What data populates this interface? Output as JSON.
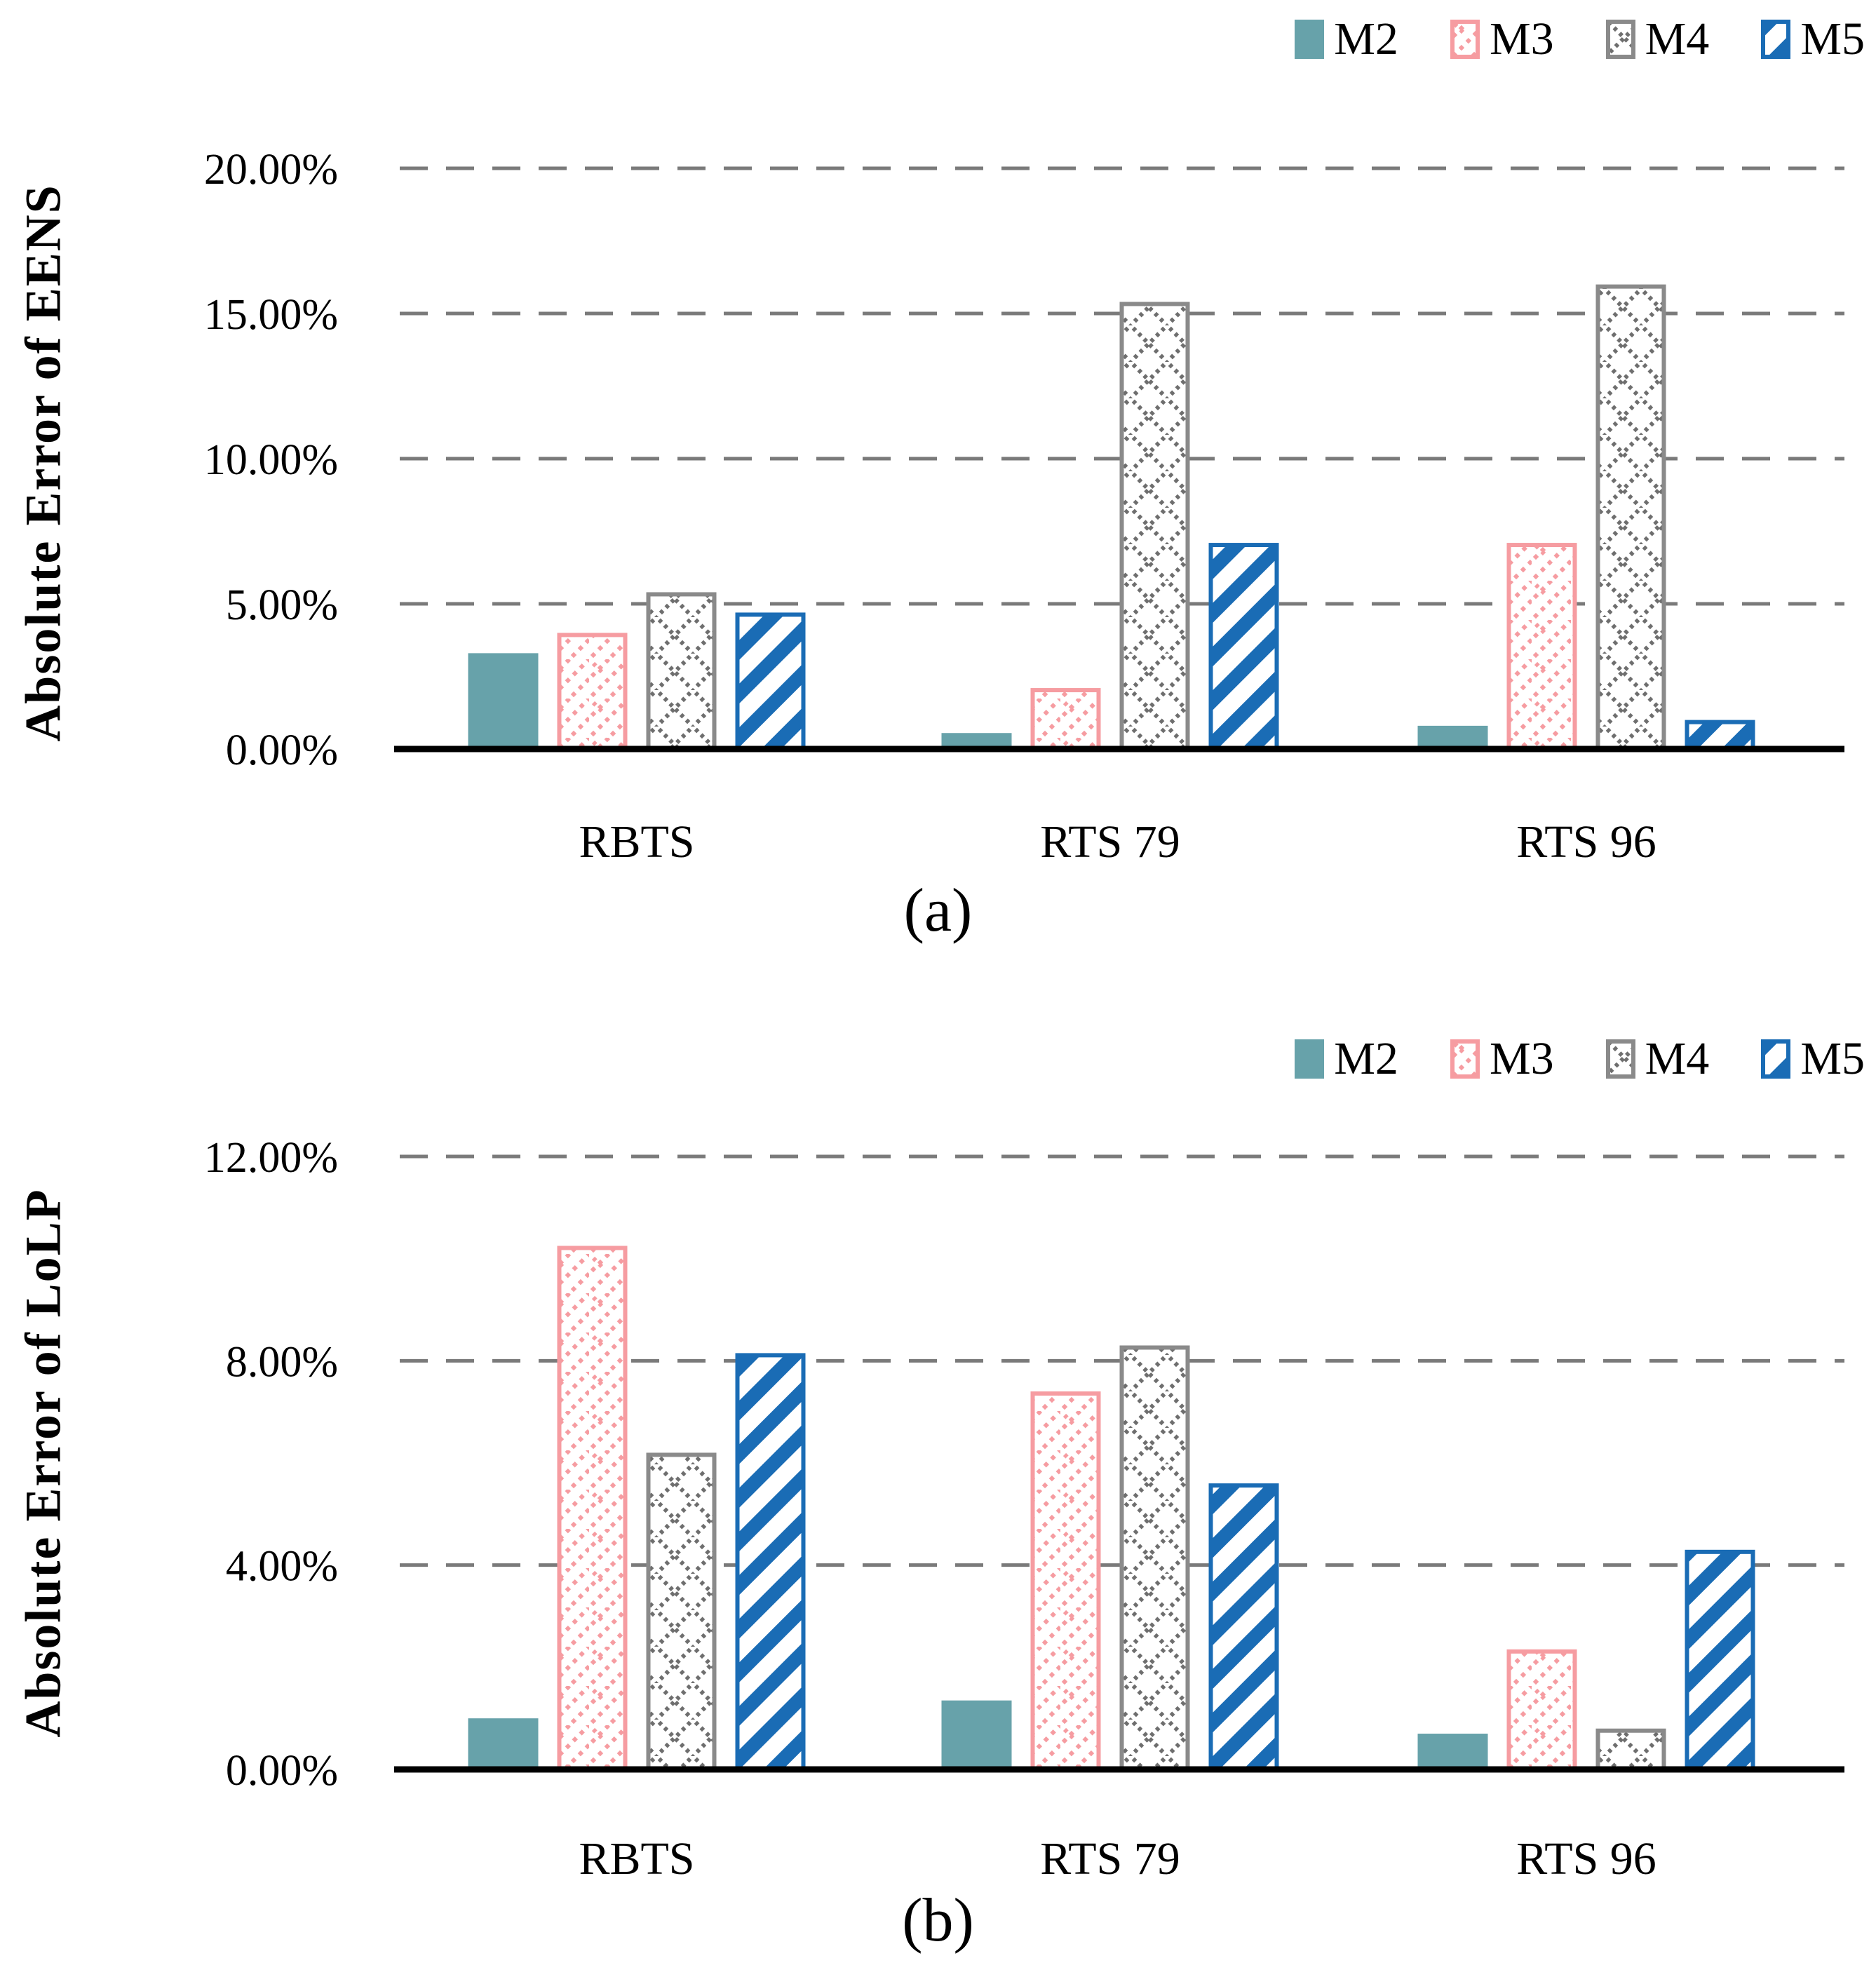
{
  "colors": {
    "m2_teal": "#67a2aa",
    "m3_pink": "#f69ca1",
    "m4_gray_border": "#8a8a8a",
    "m4_gray_dots": "#6e6e6e",
    "m5_blue": "#1a6cb5",
    "grid_gray": "#7a7a7a",
    "axis_black": "#000000",
    "bar_bg_white": "#ffffff"
  },
  "chart_data": [
    {
      "type": "bar",
      "panel": "(a)",
      "ylabel": "Absolute Error of EENS",
      "categories": [
        "RBTS",
        "RTS 79",
        "RTS 96"
      ],
      "series": [
        {
          "name": "M2",
          "style": "solid-teal",
          "values": [
            3.3,
            0.55,
            0.8
          ]
        },
        {
          "name": "M3",
          "style": "pink-dotted-diagonal-hatch",
          "values": [
            4.0,
            2.1,
            7.1
          ]
        },
        {
          "name": "M4",
          "style": "gray-dotted-crosshatch",
          "values": [
            5.4,
            15.4,
            16.0
          ]
        },
        {
          "name": "M5",
          "style": "blue-diagonal-stripes",
          "values": [
            4.7,
            7.1,
            1.0
          ]
        }
      ],
      "ylim": [
        0,
        20
      ],
      "y_ticks": [
        {
          "value": 20,
          "label": "20.00%"
        },
        {
          "value": 15,
          "label": "15.00%"
        },
        {
          "value": 10,
          "label": "10.00%"
        },
        {
          "value": 5,
          "label": "5.00%"
        },
        {
          "value": 0,
          "label": "0.00%"
        }
      ],
      "grid": "horizontal-dashed",
      "legend_position": "top-right"
    },
    {
      "type": "bar",
      "panel": "(b)",
      "ylabel": "Absolute Error of LoLP",
      "categories": [
        "RBTS",
        "RTS 79",
        "RTS 96"
      ],
      "series": [
        {
          "name": "M2",
          "style": "solid-teal",
          "values": [
            1.0,
            1.35,
            0.7
          ]
        },
        {
          "name": "M3",
          "style": "pink-dotted-diagonal-hatch",
          "values": [
            10.25,
            7.4,
            2.35
          ]
        },
        {
          "name": "M4",
          "style": "gray-dotted-crosshatch",
          "values": [
            6.2,
            8.3,
            0.8
          ]
        },
        {
          "name": "M5",
          "style": "blue-diagonal-stripes",
          "values": [
            8.15,
            5.6,
            4.3
          ]
        }
      ],
      "ylim": [
        0,
        12
      ],
      "y_ticks": [
        {
          "value": 12,
          "label": "12.00%"
        },
        {
          "value": 8,
          "label": "8.00%"
        },
        {
          "value": 4,
          "label": "4.00%"
        },
        {
          "value": 0,
          "label": "0.00%"
        }
      ],
      "grid": "horizontal-dashed",
      "legend_position": "top-right"
    }
  ]
}
